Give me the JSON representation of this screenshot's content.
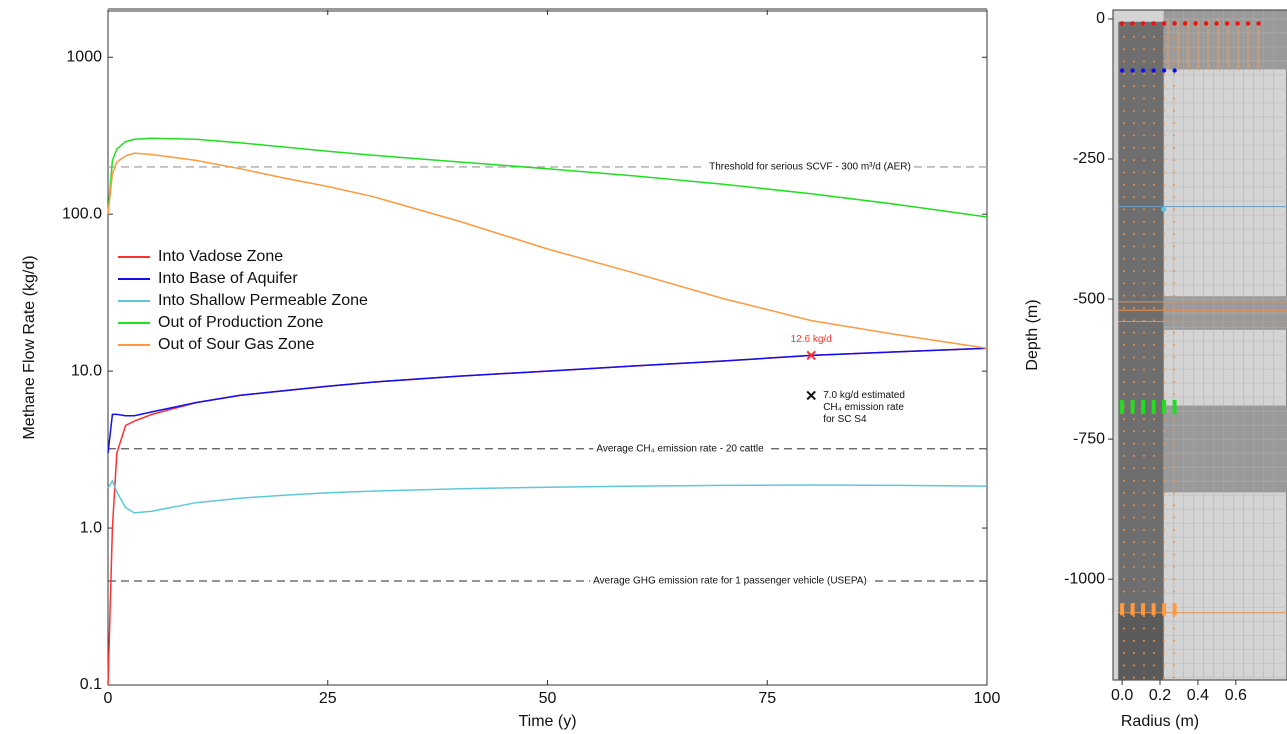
{
  "chart_data": [
    {
      "type": "line",
      "ylabel": "Methane Flow Rate (kg/d)",
      "xlabel": "Time  (y)",
      "log_y": true,
      "xlim": [
        0,
        100
      ],
      "xticks": [
        0,
        25,
        50,
        75,
        100
      ],
      "ylim": [
        0.1,
        2000
      ],
      "yticks": [
        0.1,
        {
          "value": 1,
          "label": "1.0"
        },
        {
          "value": 10,
          "label": "10.0"
        },
        {
          "value": 100,
          "label": "100.0"
        },
        1000
      ],
      "x": [
        0,
        0.5,
        1,
        2,
        3,
        5,
        10,
        15,
        20,
        25,
        30,
        40,
        50,
        60,
        70,
        80,
        90,
        100
      ],
      "series": [
        {
          "name": "Into Vadose Zone",
          "color": "#ff3030",
          "values": [
            0.1,
            1.0,
            3.0,
            4.5,
            4.8,
            5.3,
            6.3,
            7.0,
            7.5,
            8.0,
            8.5,
            9.3,
            10.0,
            10.8,
            11.6,
            12.6,
            13.3,
            14.0
          ]
        },
        {
          "name": "Into Base of Aquifer",
          "color": "#1010ee",
          "values": [
            3.0,
            5.3,
            5.3,
            5.2,
            5.2,
            5.5,
            6.3,
            7.0,
            7.5,
            8.0,
            8.5,
            9.3,
            10.0,
            10.8,
            11.6,
            12.6,
            13.3,
            14.0
          ]
        },
        {
          "name": "Into Shallow Permeable Zone",
          "color": "#5ec8d8",
          "values": [
            1.8,
            2.0,
            1.7,
            1.35,
            1.25,
            1.28,
            1.45,
            1.55,
            1.62,
            1.68,
            1.72,
            1.78,
            1.82,
            1.85,
            1.87,
            1.88,
            1.87,
            1.85
          ]
        },
        {
          "name": "Out of Production Zone",
          "color": "#22dd22",
          "values": [
            100,
            220,
            260,
            290,
            300,
            305,
            300,
            285,
            268,
            252,
            238,
            215,
            195,
            175,
            155,
            135,
            115,
            96
          ]
        },
        {
          "name": "Out of Sour Gas Zone",
          "color": "#ff9a40",
          "values": [
            100,
            180,
            215,
            235,
            245,
            240,
            220,
            195,
            170,
            150,
            130,
            90,
            60,
            42,
            29,
            21,
            17,
            14
          ]
        }
      ],
      "hlines": [
        {
          "value": 200,
          "label": "Threshold for serious SCVF - 300 m³/d (AER)",
          "color": "#aaaaaa"
        },
        {
          "value": 3.2,
          "label": "Average CH₄ emission rate - 20 cattle",
          "color": "#555555"
        },
        {
          "value": 0.46,
          "label": "Average GHG emission rate for 1 passenger vehicle (USEPA)",
          "color": "#555555"
        }
      ],
      "markers": [
        {
          "x": 80,
          "y": 12.6,
          "color": "#ff3030",
          "label": [
            "12.6  kg/d"
          ]
        },
        {
          "x": 80,
          "y": 7.0,
          "color": "#111111",
          "label": [
            "7.0 kg/d estimated",
            "CH₄ emission rate",
            "for SC S4"
          ]
        }
      ]
    },
    {
      "type": "mesh",
      "ylabel": "Depth  (m)",
      "xlabel": "Radius  (m)",
      "xlim": [
        -0.048,
        0.87
      ],
      "xticks": [
        {
          "value": 0,
          "label": "0.0"
        },
        0.2,
        0.4,
        0.6
      ],
      "ylim": [
        -1180,
        16
      ],
      "yticks": [
        0,
        -250,
        -500,
        -750,
        -1000
      ]
    }
  ]
}
